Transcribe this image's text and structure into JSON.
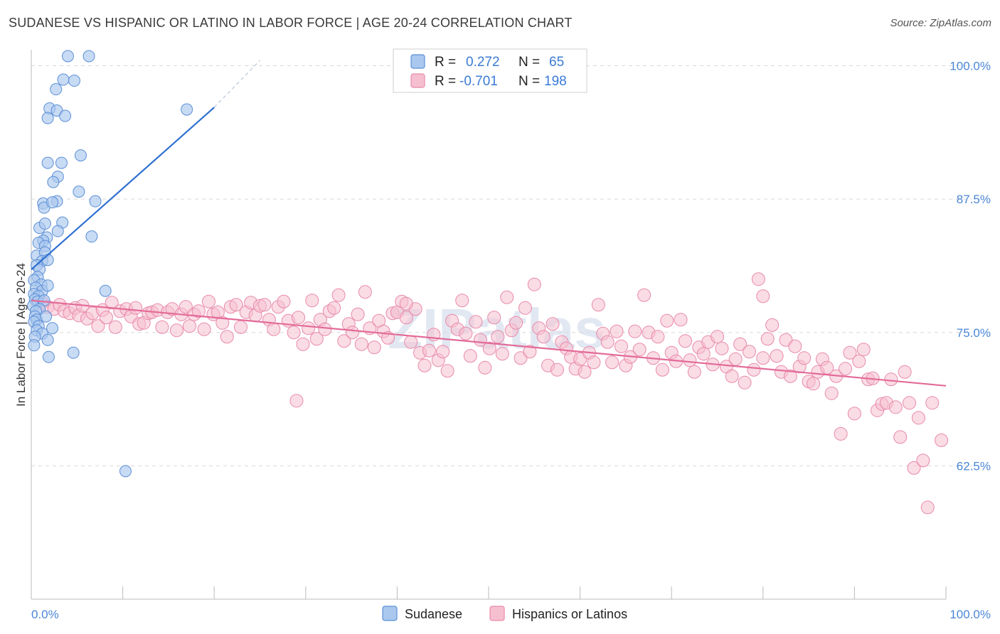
{
  "title": "SUDANESE VS HISPANIC OR LATINO IN LABOR FORCE | AGE 20-24 CORRELATION CHART",
  "source": "Source: ZipAtlas.com",
  "watermark": "ZIPatlas",
  "colors": {
    "sudanese_fill": "#aac8ee",
    "sudanese_stroke": "#5b8fd6",
    "sudanese_line": "#2d6fd0",
    "hispanic_fill": "#f6bfd0",
    "hispanic_stroke": "#e88aab",
    "hispanic_line": "#e36b98",
    "tick_text": "#4a86d8",
    "grid": "#d8d8d8"
  },
  "legend": {
    "rows": [
      {
        "r_label": "R =",
        "r_value": "0.272",
        "n_label": "N =",
        "n_value": "65"
      },
      {
        "r_label": "R =",
        "r_value": "-0.701",
        "n_label": "N =",
        "n_value": "198"
      }
    ]
  },
  "chart_data": {
    "type": "scatter",
    "title": "SUDANESE VS HISPANIC OR LATINO IN LABOR FORCE | AGE 20-24 CORRELATION CHART",
    "xlabel": "",
    "ylabel": "In Labor Force | Age 20-24",
    "x_tick_labels": [
      "0.0%",
      "100.0%"
    ],
    "y_tick_labels": [
      "100.0%",
      "87.5%",
      "75.0%",
      "62.5%"
    ],
    "y_ticks": [
      100.0,
      87.5,
      75.0,
      62.5
    ],
    "xlim": [
      0,
      100
    ],
    "ylim": [
      50,
      101.5
    ],
    "grid": true,
    "legend_position": "top-center",
    "series": [
      {
        "name": "Sudanese",
        "R": 0.272,
        "N": 65,
        "trend": {
          "x": [
            0,
            20
          ],
          "y": [
            80.9,
            96.1
          ],
          "dashed_to": {
            "x": 25,
            "y": 100.5
          }
        },
        "points": [
          [
            4,
            100.9
          ],
          [
            6.3,
            100.9
          ],
          [
            3.5,
            98.7
          ],
          [
            4.7,
            98.6
          ],
          [
            2.7,
            97.8
          ],
          [
            2.0,
            96.0
          ],
          [
            2.8,
            95.8
          ],
          [
            3.7,
            95.3
          ],
          [
            1.8,
            95.1
          ],
          [
            17.0,
            95.9
          ],
          [
            5.4,
            91.6
          ],
          [
            1.8,
            90.9
          ],
          [
            3.3,
            90.9
          ],
          [
            2.9,
            89.6
          ],
          [
            2.4,
            89.1
          ],
          [
            5.2,
            88.2
          ],
          [
            7.0,
            87.3
          ],
          [
            1.3,
            87.1
          ],
          [
            2.8,
            87.3
          ],
          [
            1.4,
            86.7
          ],
          [
            2.3,
            87.2
          ],
          [
            3.4,
            85.3
          ],
          [
            0.9,
            84.8
          ],
          [
            1.5,
            85.2
          ],
          [
            2.9,
            84.5
          ],
          [
            1.7,
            83.9
          ],
          [
            1.3,
            83.6
          ],
          [
            6.6,
            84.0
          ],
          [
            0.8,
            83.4
          ],
          [
            1.5,
            83.1
          ],
          [
            0.6,
            82.2
          ],
          [
            1.5,
            82.5
          ],
          [
            1.2,
            81.7
          ],
          [
            1.8,
            81.8
          ],
          [
            0.6,
            81.3
          ],
          [
            0.9,
            80.9
          ],
          [
            0.7,
            80.2
          ],
          [
            0.3,
            79.9
          ],
          [
            1.1,
            79.5
          ],
          [
            0.5,
            79.2
          ],
          [
            1.2,
            78.9
          ],
          [
            1.8,
            79.4
          ],
          [
            0.3,
            78.6
          ],
          [
            0.8,
            78.4
          ],
          [
            0.4,
            78.1
          ],
          [
            0.7,
            77.9
          ],
          [
            1.4,
            78.0
          ],
          [
            0.2,
            77.5
          ],
          [
            0.9,
            77.2
          ],
          [
            0.5,
            77.0
          ],
          [
            0.4,
            76.5
          ],
          [
            0.6,
            76.2
          ],
          [
            1.6,
            76.5
          ],
          [
            0.3,
            76.0
          ],
          [
            0.8,
            75.6
          ],
          [
            2.3,
            75.4
          ],
          [
            0.6,
            75.2
          ],
          [
            1.2,
            74.9
          ],
          [
            0.4,
            74.6
          ],
          [
            1.8,
            74.3
          ],
          [
            0.3,
            73.8
          ],
          [
            4.6,
            73.1
          ],
          [
            1.9,
            72.7
          ],
          [
            8.1,
            78.9
          ],
          [
            10.3,
            62.0
          ]
        ]
      },
      {
        "name": "Hispanics or Latinos",
        "R": -0.701,
        "N": 198,
        "trend": {
          "x": [
            0,
            100
          ],
          "y": [
            78.0,
            70.0
          ]
        },
        "points": [
          [
            1.2,
            77.8
          ],
          [
            1.8,
            77.4
          ],
          [
            2.5,
            77.2
          ],
          [
            3.1,
            77.6
          ],
          [
            3.6,
            77.0
          ],
          [
            4.2,
            76.8
          ],
          [
            4.8,
            77.3
          ],
          [
            5.2,
            76.6
          ],
          [
            5.6,
            77.5
          ],
          [
            6.1,
            76.3
          ],
          [
            6.7,
            76.8
          ],
          [
            7.3,
            75.6
          ],
          [
            7.8,
            77.1
          ],
          [
            8.2,
            76.4
          ],
          [
            8.8,
            77.8
          ],
          [
            9.2,
            75.5
          ],
          [
            9.7,
            77.0
          ],
          [
            10.4,
            77.2
          ],
          [
            10.9,
            76.5
          ],
          [
            11.4,
            77.3
          ],
          [
            11.8,
            75.8
          ],
          [
            12.3,
            75.9
          ],
          [
            12.8,
            76.8
          ],
          [
            13.2,
            76.9
          ],
          [
            13.8,
            77.1
          ],
          [
            14.3,
            75.5
          ],
          [
            14.9,
            76.9
          ],
          [
            15.4,
            77.2
          ],
          [
            15.9,
            75.2
          ],
          [
            16.4,
            76.7
          ],
          [
            16.9,
            77.4
          ],
          [
            17.3,
            75.6
          ],
          [
            17.8,
            76.7
          ],
          [
            18.3,
            77.0
          ],
          [
            18.9,
            75.3
          ],
          [
            19.4,
            77.9
          ],
          [
            19.9,
            76.7
          ],
          [
            20.4,
            76.9
          ],
          [
            20.9,
            75.9
          ],
          [
            21.4,
            74.6
          ],
          [
            21.8,
            77.4
          ],
          [
            22.4,
            77.6
          ],
          [
            22.9,
            75.5
          ],
          [
            23.5,
            76.9
          ],
          [
            24.0,
            77.8
          ],
          [
            24.5,
            76.6
          ],
          [
            25.0,
            77.5
          ],
          [
            25.5,
            77.6
          ],
          [
            26.0,
            76.2
          ],
          [
            26.5,
            75.3
          ],
          [
            27.0,
            77.4
          ],
          [
            27.6,
            77.9
          ],
          [
            28.1,
            76.1
          ],
          [
            28.7,
            75.0
          ],
          [
            29.2,
            76.4
          ],
          [
            29.7,
            73.9
          ],
          [
            30.3,
            75.4
          ],
          [
            30.7,
            78.0
          ],
          [
            31.2,
            74.4
          ],
          [
            31.6,
            76.2
          ],
          [
            32.1,
            75.3
          ],
          [
            32.6,
            77.0
          ],
          [
            33.1,
            77.3
          ],
          [
            33.6,
            78.5
          ],
          [
            34.2,
            74.2
          ],
          [
            34.7,
            75.8
          ],
          [
            35.1,
            75.0
          ],
          [
            35.7,
            76.7
          ],
          [
            36.1,
            73.9
          ],
          [
            36.5,
            78.8
          ],
          [
            37.0,
            75.4
          ],
          [
            37.5,
            73.6
          ],
          [
            38.0,
            76.1
          ],
          [
            38.5,
            75.1
          ],
          [
            39.0,
            74.5
          ],
          [
            39.5,
            76.8
          ],
          [
            40.0,
            76.9
          ],
          [
            40.5,
            77.9
          ],
          [
            41.0,
            76.4
          ],
          [
            41.5,
            74.1
          ],
          [
            42.0,
            77.2
          ],
          [
            42.5,
            73.1
          ],
          [
            43.0,
            71.9
          ],
          [
            43.5,
            73.3
          ],
          [
            44.0,
            74.8
          ],
          [
            44.5,
            72.4
          ],
          [
            45.0,
            73.2
          ],
          [
            45.5,
            71.4
          ],
          [
            46.0,
            76.1
          ],
          [
            46.6,
            75.3
          ],
          [
            47.1,
            78.0
          ],
          [
            47.5,
            74.9
          ],
          [
            48.0,
            72.8
          ],
          [
            48.6,
            76.0
          ],
          [
            49.1,
            74.3
          ],
          [
            49.6,
            71.7
          ],
          [
            50.1,
            73.5
          ],
          [
            50.6,
            76.4
          ],
          [
            51.0,
            74.6
          ],
          [
            51.5,
            73.0
          ],
          [
            52.0,
            78.3
          ],
          [
            52.5,
            75.2
          ],
          [
            53.0,
            75.9
          ],
          [
            53.5,
            72.6
          ],
          [
            54.0,
            77.3
          ],
          [
            54.5,
            73.2
          ],
          [
            55.0,
            79.5
          ],
          [
            55.5,
            75.4
          ],
          [
            56.0,
            74.6
          ],
          [
            56.5,
            71.9
          ],
          [
            57.0,
            75.8
          ],
          [
            57.5,
            71.5
          ],
          [
            58.0,
            74.1
          ],
          [
            58.5,
            73.5
          ],
          [
            59.0,
            72.7
          ],
          [
            59.5,
            71.6
          ],
          [
            60.0,
            72.5
          ],
          [
            60.5,
            71.3
          ],
          [
            61.0,
            73.1
          ],
          [
            61.5,
            72.2
          ],
          [
            62.0,
            77.6
          ],
          [
            62.5,
            74.9
          ],
          [
            63.0,
            74.1
          ],
          [
            63.5,
            72.2
          ],
          [
            64.0,
            75.1
          ],
          [
            64.5,
            73.7
          ],
          [
            65.0,
            71.9
          ],
          [
            65.5,
            72.7
          ],
          [
            66.0,
            75.1
          ],
          [
            66.5,
            73.4
          ],
          [
            67.0,
            78.5
          ],
          [
            67.5,
            75.0
          ],
          [
            68.0,
            72.6
          ],
          [
            68.5,
            74.6
          ],
          [
            69.0,
            71.5
          ],
          [
            69.5,
            76.1
          ],
          [
            70.0,
            73.1
          ],
          [
            70.5,
            72.3
          ],
          [
            71.0,
            76.2
          ],
          [
            71.5,
            74.2
          ],
          [
            72.0,
            72.4
          ],
          [
            72.5,
            71.3
          ],
          [
            73.0,
            73.6
          ],
          [
            73.5,
            73.0
          ],
          [
            74.0,
            74.1
          ],
          [
            74.5,
            72.0
          ],
          [
            75.0,
            74.6
          ],
          [
            75.5,
            73.5
          ],
          [
            76.0,
            71.8
          ],
          [
            76.6,
            70.9
          ],
          [
            77.0,
            72.5
          ],
          [
            77.5,
            73.9
          ],
          [
            78.0,
            70.3
          ],
          [
            78.5,
            73.2
          ],
          [
            79.0,
            71.5
          ],
          [
            79.5,
            80.0
          ],
          [
            80.0,
            72.6
          ],
          [
            80.5,
            74.4
          ],
          [
            81.0,
            75.7
          ],
          [
            81.5,
            72.8
          ],
          [
            82.0,
            71.3
          ],
          [
            82.5,
            74.3
          ],
          [
            83.0,
            70.9
          ],
          [
            83.5,
            73.7
          ],
          [
            84.0,
            71.8
          ],
          [
            84.5,
            72.6
          ],
          [
            85.0,
            70.4
          ],
          [
            85.5,
            70.2
          ],
          [
            86.0,
            71.3
          ],
          [
            86.5,
            72.5
          ],
          [
            87.0,
            71.7
          ],
          [
            87.5,
            69.3
          ],
          [
            88.0,
            70.9
          ],
          [
            88.5,
            65.5
          ],
          [
            89.0,
            71.6
          ],
          [
            89.5,
            73.1
          ],
          [
            90.0,
            67.4
          ],
          [
            90.5,
            72.3
          ],
          [
            91.0,
            73.4
          ],
          [
            91.5,
            70.6
          ],
          [
            92.0,
            70.7
          ],
          [
            92.5,
            67.7
          ],
          [
            93.0,
            68.3
          ],
          [
            93.5,
            68.4
          ],
          [
            94.0,
            70.6
          ],
          [
            94.5,
            68.0
          ],
          [
            95.0,
            65.2
          ],
          [
            95.5,
            71.3
          ],
          [
            96.0,
            68.4
          ],
          [
            96.5,
            62.3
          ],
          [
            97.0,
            67.0
          ],
          [
            97.5,
            63.0
          ],
          [
            98.0,
            58.6
          ],
          [
            98.5,
            68.4
          ],
          [
            99.5,
            64.9
          ],
          [
            29.0,
            68.6
          ],
          [
            80.0,
            78.4
          ],
          [
            41.0,
            77.7
          ]
        ]
      }
    ]
  },
  "bottom_legend": [
    "Sudanese",
    "Hispanics or Latinos"
  ]
}
